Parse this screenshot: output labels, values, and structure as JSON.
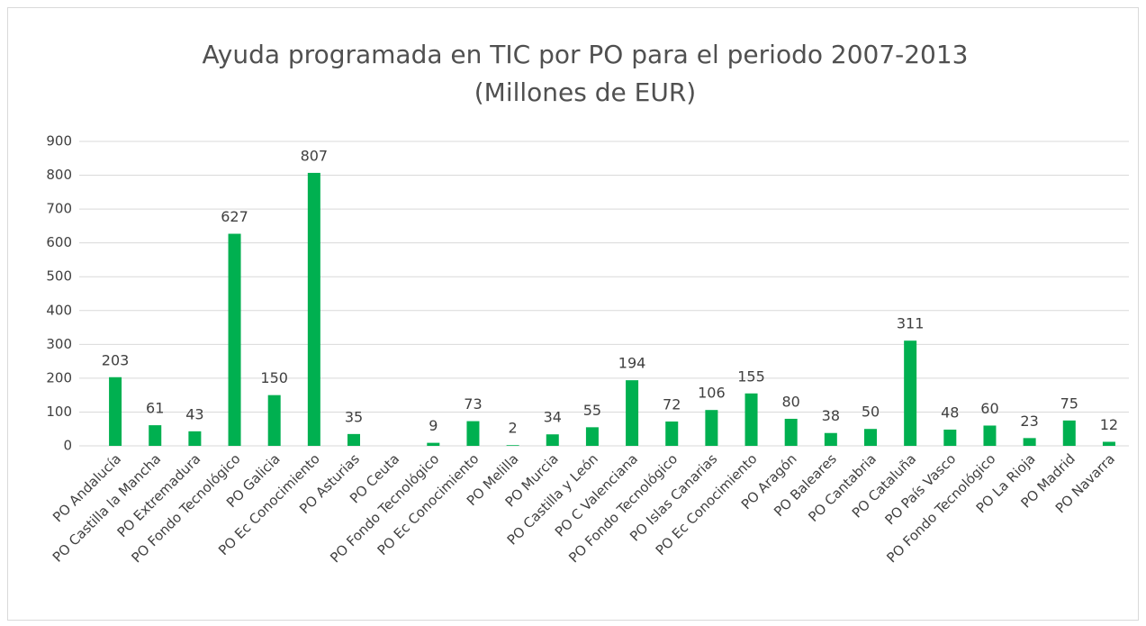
{
  "chart_data": {
    "type": "bar",
    "title": "Ayuda programada en TIC por PO para el periodo 2007-2013",
    "subtitle": "(Millones de EUR)",
    "categories": [
      "PO Andalucía",
      "PO Castilla la Mancha",
      "PO Extremadura",
      "PO Fondo Tecnológico",
      "PO Galicia",
      "PO Ec Conocimiento",
      "PO Asturias",
      "PO Ceuta",
      "PO Fondo Tecnológico",
      "PO Ec Conocimiento",
      "PO Melilla",
      "PO Murcia",
      "PO Castilla y León",
      "PO C Valenciana",
      "PO Fondo Tecnológico",
      "PO Islas Canarias",
      "PO Ec Conocimiento",
      "PO Aragón",
      "PO Baleares",
      "PO Cantabria",
      "PO Cataluña",
      "PO País Vasco",
      "PO Fondo Tecnológico",
      "PO La Rioja",
      "PO Madrid",
      "PO Navarra"
    ],
    "values": [
      203,
      61,
      43,
      627,
      150,
      807,
      35,
      null,
      9,
      73,
      2,
      34,
      55,
      194,
      72,
      106,
      155,
      80,
      38,
      50,
      311,
      48,
      60,
      23,
      75,
      12
    ],
    "color": "#00b050",
    "ylim": [
      0,
      900
    ],
    "yticks": [
      0,
      100,
      200,
      300,
      400,
      500,
      600,
      700,
      800,
      900
    ],
    "grid": true
  }
}
